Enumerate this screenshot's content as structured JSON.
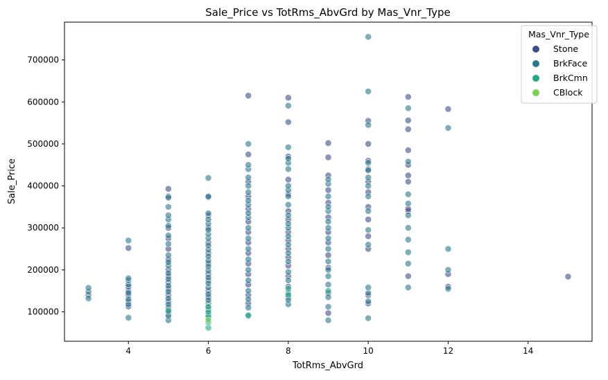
{
  "chart_data": {
    "type": "scatter",
    "title": "Sale_Price vs TotRms_AbvGrd by Mas_Vnr_Type",
    "xlabel": "TotRms_AbvGrd",
    "ylabel": "Sale_Price",
    "xlim": [
      2.4,
      15.6
    ],
    "ylim": [
      30000,
      790000
    ],
    "xticks": [
      4,
      6,
      8,
      10,
      12,
      14
    ],
    "yticks": [
      100000,
      200000,
      300000,
      400000,
      500000,
      600000,
      700000
    ],
    "grid": false,
    "legend": {
      "title": "Mas_Vnr_Type",
      "placement": "top-right",
      "entries": [
        "Stone",
        "BrkFace",
        "BrkCmn",
        "CBlock"
      ]
    },
    "series": [
      {
        "name": "Stone",
        "color": "#3b4f8a",
        "points": [
          [
            3,
            140000
          ],
          [
            4,
            113000
          ],
          [
            4,
            125000
          ],
          [
            4,
            140000
          ],
          [
            4,
            150000
          ],
          [
            4,
            160000
          ],
          [
            4,
            252000
          ],
          [
            5,
            95000
          ],
          [
            5,
            110000
          ],
          [
            5,
            125000
          ],
          [
            5,
            140000
          ],
          [
            5,
            155000
          ],
          [
            5,
            170000
          ],
          [
            5,
            185000
          ],
          [
            5,
            200000
          ],
          [
            5,
            225000
          ],
          [
            5,
            250000
          ],
          [
            5,
            275000
          ],
          [
            5,
            300000
          ],
          [
            5,
            375000
          ],
          [
            5,
            393000
          ],
          [
            6,
            110000
          ],
          [
            6,
            135000
          ],
          [
            6,
            150000
          ],
          [
            6,
            175000
          ],
          [
            6,
            190000
          ],
          [
            6,
            215000
          ],
          [
            6,
            240000
          ],
          [
            6,
            265000
          ],
          [
            6,
            300000
          ],
          [
            6,
            330000
          ],
          [
            6,
            373000
          ],
          [
            7,
            120000
          ],
          [
            7,
            140000
          ],
          [
            7,
            165000
          ],
          [
            7,
            190000
          ],
          [
            7,
            215000
          ],
          [
            7,
            240000
          ],
          [
            7,
            265000
          ],
          [
            7,
            290000
          ],
          [
            7,
            315000
          ],
          [
            7,
            345000
          ],
          [
            7,
            375000
          ],
          [
            7,
            410000
          ],
          [
            7,
            475000
          ],
          [
            7,
            615000
          ],
          [
            8,
            135000
          ],
          [
            8,
            160000
          ],
          [
            8,
            185000
          ],
          [
            8,
            210000
          ],
          [
            8,
            230000
          ],
          [
            8,
            250000
          ],
          [
            8,
            270000
          ],
          [
            8,
            290000
          ],
          [
            8,
            320000
          ],
          [
            8,
            340000
          ],
          [
            8,
            380000
          ],
          [
            8,
            415000
          ],
          [
            8,
            470000
          ],
          [
            8,
            552000
          ],
          [
            8,
            610000
          ],
          [
            9,
            97000
          ],
          [
            9,
            145000
          ],
          [
            9,
            205000
          ],
          [
            9,
            235000
          ],
          [
            9,
            265000
          ],
          [
            9,
            290000
          ],
          [
            9,
            325000
          ],
          [
            9,
            360000
          ],
          [
            9,
            390000
          ],
          [
            9,
            425000
          ],
          [
            9,
            468000
          ],
          [
            9,
            502000
          ],
          [
            10,
            120000
          ],
          [
            10,
            140000
          ],
          [
            10,
            250000
          ],
          [
            10,
            280000
          ],
          [
            10,
            320000
          ],
          [
            10,
            350000
          ],
          [
            10,
            385000
          ],
          [
            10,
            410000
          ],
          [
            10,
            440000
          ],
          [
            10,
            460000
          ],
          [
            10,
            500000
          ],
          [
            10,
            555000
          ],
          [
            11,
            185000
          ],
          [
            11,
            340000
          ],
          [
            11,
            345000
          ],
          [
            11,
            410000
          ],
          [
            11,
            425000
          ],
          [
            11,
            450000
          ],
          [
            11,
            485000
          ],
          [
            11,
            535000
          ],
          [
            11,
            556000
          ],
          [
            11,
            612000
          ],
          [
            12,
            160000
          ],
          [
            12,
            190000
          ],
          [
            12,
            583000
          ],
          [
            15,
            184000
          ]
        ]
      },
      {
        "name": "BrkFace",
        "color": "#2a788e",
        "points": [
          [
            3,
            132000
          ],
          [
            3,
            148000
          ],
          [
            3,
            157000
          ],
          [
            4,
            86000
          ],
          [
            4,
            118000
          ],
          [
            4,
            130000
          ],
          [
            4,
            145000
          ],
          [
            4,
            165000
          ],
          [
            4,
            175000
          ],
          [
            4,
            180000
          ],
          [
            4,
            270000
          ],
          [
            5,
            80000
          ],
          [
            5,
            90000
          ],
          [
            5,
            100000
          ],
          [
            5,
            118000
          ],
          [
            5,
            132000
          ],
          [
            5,
            148000
          ],
          [
            5,
            162000
          ],
          [
            5,
            178000
          ],
          [
            5,
            192000
          ],
          [
            5,
            210000
          ],
          [
            5,
            218000
          ],
          [
            5,
            235000
          ],
          [
            5,
            262000
          ],
          [
            5,
            282000
          ],
          [
            5,
            305000
          ],
          [
            5,
            320000
          ],
          [
            5,
            330000
          ],
          [
            5,
            350000
          ],
          [
            5,
            372000
          ],
          [
            6,
            85000
          ],
          [
            6,
            95000
          ],
          [
            6,
            105000
          ],
          [
            6,
            120000
          ],
          [
            6,
            128000
          ],
          [
            6,
            142000
          ],
          [
            6,
            158000
          ],
          [
            6,
            168000
          ],
          [
            6,
            182000
          ],
          [
            6,
            198000
          ],
          [
            6,
            208000
          ],
          [
            6,
            222000
          ],
          [
            6,
            232000
          ],
          [
            6,
            248000
          ],
          [
            6,
            258000
          ],
          [
            6,
            275000
          ],
          [
            6,
            285000
          ],
          [
            6,
            295000
          ],
          [
            6,
            310000
          ],
          [
            6,
            320000
          ],
          [
            6,
            335000
          ],
          [
            6,
            375000
          ],
          [
            6,
            419000
          ],
          [
            7,
            90000
          ],
          [
            7,
            110000
          ],
          [
            7,
            130000
          ],
          [
            7,
            150000
          ],
          [
            7,
            175000
          ],
          [
            7,
            200000
          ],
          [
            7,
            225000
          ],
          [
            7,
            250000
          ],
          [
            7,
            275000
          ],
          [
            7,
            300000
          ],
          [
            7,
            325000
          ],
          [
            7,
            335000
          ],
          [
            7,
            355000
          ],
          [
            7,
            365000
          ],
          [
            7,
            385000
          ],
          [
            7,
            400000
          ],
          [
            7,
            420000
          ],
          [
            7,
            440000
          ],
          [
            7,
            450000
          ],
          [
            7,
            500000
          ],
          [
            8,
            118000
          ],
          [
            8,
            128000
          ],
          [
            8,
            145000
          ],
          [
            8,
            175000
          ],
          [
            8,
            195000
          ],
          [
            8,
            220000
          ],
          [
            8,
            240000
          ],
          [
            8,
            260000
          ],
          [
            8,
            280000
          ],
          [
            8,
            300000
          ],
          [
            8,
            310000
          ],
          [
            8,
            330000
          ],
          [
            8,
            355000
          ],
          [
            8,
            375000
          ],
          [
            8,
            390000
          ],
          [
            8,
            400000
          ],
          [
            8,
            440000
          ],
          [
            8,
            455000
          ],
          [
            8,
            465000
          ],
          [
            8,
            492000
          ],
          [
            8,
            591000
          ],
          [
            9,
            80000
          ],
          [
            9,
            112000
          ],
          [
            9,
            135000
          ],
          [
            9,
            165000
          ],
          [
            9,
            185000
          ],
          [
            9,
            200000
          ],
          [
            9,
            220000
          ],
          [
            9,
            250000
          ],
          [
            9,
            275000
          ],
          [
            9,
            300000
          ],
          [
            9,
            315000
          ],
          [
            9,
            340000
          ],
          [
            9,
            350000
          ],
          [
            9,
            375000
          ],
          [
            9,
            405000
          ],
          [
            9,
            415000
          ],
          [
            10,
            85000
          ],
          [
            10,
            125000
          ],
          [
            10,
            145000
          ],
          [
            10,
            158000
          ],
          [
            10,
            260000
          ],
          [
            10,
            295000
          ],
          [
            10,
            340000
          ],
          [
            10,
            375000
          ],
          [
            10,
            400000
          ],
          [
            10,
            420000
          ],
          [
            10,
            437000
          ],
          [
            10,
            455000
          ],
          [
            10,
            545000
          ],
          [
            10,
            625000
          ],
          [
            10,
            755000
          ],
          [
            11,
            158000
          ],
          [
            11,
            215000
          ],
          [
            11,
            242000
          ],
          [
            11,
            272000
          ],
          [
            11,
            300000
          ],
          [
            11,
            330000
          ],
          [
            11,
            358000
          ],
          [
            11,
            380000
          ],
          [
            11,
            458000
          ],
          [
            11,
            585000
          ],
          [
            12,
            155000
          ],
          [
            12,
            200000
          ],
          [
            12,
            250000
          ],
          [
            12,
            538000
          ]
        ]
      },
      {
        "name": "BrkCmn",
        "color": "#22a884",
        "points": [
          [
            5,
            103000
          ],
          [
            6,
            62000
          ],
          [
            6,
            75000
          ],
          [
            6,
            85000
          ],
          [
            6,
            90000
          ],
          [
            6,
            100000
          ],
          [
            6,
            112000
          ],
          [
            7,
            92000
          ],
          [
            8,
            140000
          ],
          [
            8,
            155000
          ],
          [
            9,
            150000
          ]
        ]
      },
      {
        "name": "CBlock",
        "color": "#7ad151",
        "points": [
          [
            6,
            80000
          ]
        ]
      }
    ]
  }
}
